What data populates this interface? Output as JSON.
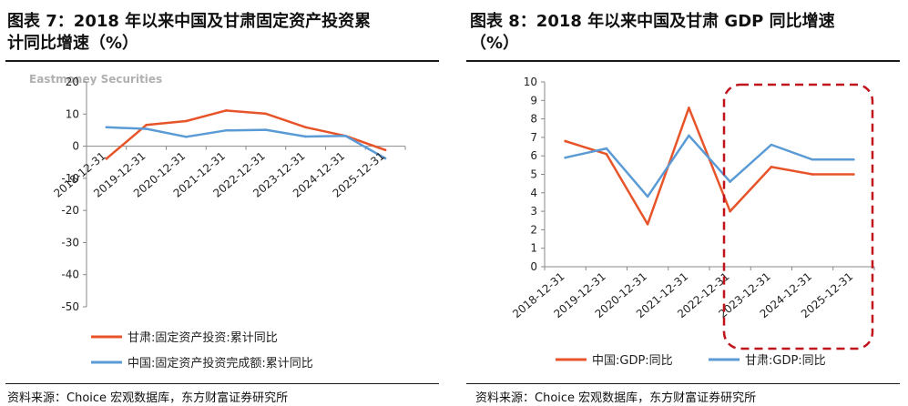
{
  "watermark": "Eastmoney Securities",
  "left": {
    "title_line1": "图表 7：2018 年以来中国及甘肃固定资产投资累",
    "title_line2": "计同比增速（%）",
    "source": "资料来源：Choice 宏观数据库，东方财富证券研究所"
  },
  "right": {
    "title_line1": "图表 8：2018 年以来中国及甘肃 GDP 同比增速",
    "title_line2": "（%）",
    "source": "资料来源：Choice 宏观数据库，东方财富证券研究所"
  },
  "chart_data": [
    {
      "type": "line",
      "categories": [
        "2018-12-31",
        "2019-12-31",
        "2020-12-31",
        "2021-12-31",
        "2022-12-31",
        "2023-12-31",
        "2024-12-31",
        "2025-12-31"
      ],
      "ylim": [
        -50,
        20
      ],
      "yticks": [
        20,
        10,
        0,
        -10,
        -20,
        -30,
        -40,
        -50
      ],
      "series": [
        {
          "name": "甘肃:固定资产投资:累计同比",
          "color": "#e8542a",
          "values": [
            -3.9,
            6.6,
            7.8,
            11.1,
            10.1,
            5.9,
            3.2,
            -1.2
          ]
        },
        {
          "name": "中国:固定资产投资完成额:累计同比",
          "color": "#5b9bd5",
          "values": [
            5.9,
            5.4,
            2.9,
            4.9,
            5.1,
            3.0,
            3.2,
            -3.8
          ]
        }
      ],
      "legend": "bottom"
    },
    {
      "type": "line",
      "categories": [
        "2018-12-31",
        "2019-12-31",
        "2020-12-31",
        "2021-12-31",
        "2022-12-31",
        "2023-12-31",
        "2024-12-31",
        "2025-12-31"
      ],
      "ylim": [
        0,
        10
      ],
      "yticks": [
        10,
        9,
        8,
        7,
        6,
        5,
        4,
        3,
        2,
        1,
        0
      ],
      "series": [
        {
          "name": "中国:GDP:同比",
          "color": "#e8542a",
          "values": [
            6.8,
            6.1,
            2.3,
            8.6,
            3.0,
            5.4,
            5.0,
            5.0
          ]
        },
        {
          "name": "甘肃:GDP:同比",
          "color": "#5b9bd5",
          "values": [
            5.9,
            6.4,
            3.8,
            7.1,
            4.6,
            6.6,
            5.8,
            5.8
          ]
        }
      ],
      "legend": "bottom"
    }
  ]
}
